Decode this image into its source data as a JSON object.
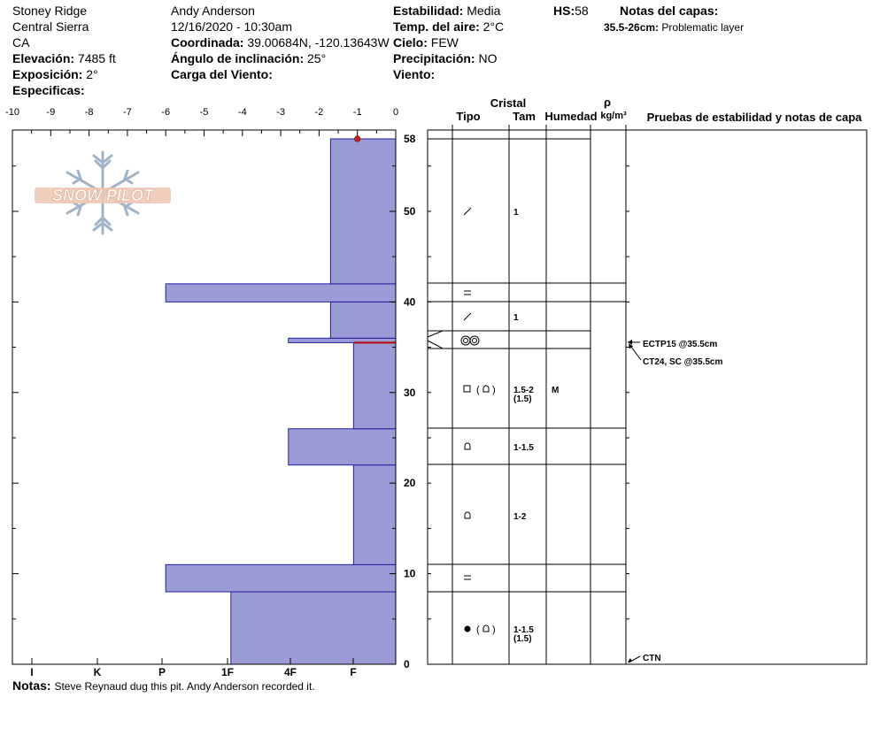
{
  "header": {
    "location": "Stoney Ridge",
    "region": "Central Sierra",
    "state": "CA",
    "elevation_label": "Elevación:",
    "elevation_value": "7485 ft",
    "aspect_label": "Exposición:",
    "aspect_value": "2°",
    "specifics_label": "Especificas:",
    "observer": "Andy Anderson",
    "datetime": "12/16/2020 - 10:30am",
    "coord_label": "Coordinada:",
    "coord_value": "39.00684N, -120.13643W",
    "slope_label": "Ángulo de inclinación:",
    "slope_value": "25°",
    "wind_load_label": "Carga del Viento:",
    "stability_label": "Estabilidad:",
    "stability_value": "Media",
    "air_temp_label": "Temp. del aire:",
    "air_temp_value": "2°C",
    "sky_label": "Cielo:",
    "sky_value": "FEW",
    "precip_label": "Precipitación:",
    "precip_value": "NO",
    "wind_label": "Viento:",
    "hs_label": "HS:",
    "hs_value": "58",
    "layer_notes_label": "Notas del capas:",
    "layer_note_range": "35.5-26cm:",
    "layer_note_text": "Problematic layer"
  },
  "logo_text": "SNOW PILOT",
  "colors": {
    "bar_fill": "#9b9bd6",
    "bar_stroke": "#2020a0",
    "weak_layer": "#c00000",
    "marker": "#cc2222"
  },
  "columns": {
    "crystal": "Cristal",
    "type": "Tipo",
    "size": "Tam",
    "moisture": "Humedad",
    "rho": "ρ",
    "density_unit": "kg/m³",
    "tests": "Pruebas de estabilidad y notas de capa"
  },
  "chart_data": {
    "type": "bar",
    "title": "",
    "x_axis_top": {
      "ticks": [
        -10,
        -9,
        -8,
        -7,
        -6,
        -5,
        -4,
        -3,
        -2,
        -1,
        0
      ],
      "label": ""
    },
    "hardness_scale": [
      "I",
      "K",
      "P",
      "1F",
      "4F",
      "F"
    ],
    "depth_ticks": [
      0,
      10,
      20,
      30,
      40,
      50,
      58
    ],
    "ylim": [
      0,
      58
    ],
    "hs": 58,
    "temperature_points": [
      {
        "depth": 58,
        "temp": -1
      }
    ],
    "weak_layer_depth": 35.5,
    "layers": [
      {
        "bottom": 0,
        "top": 8,
        "hardness": "1F",
        "hardness_value": 4.3,
        "grain": "melt-freeze + round",
        "size": "1-1.5",
        "size_sub": "(1.5)",
        "moisture": ""
      },
      {
        "bottom": 8,
        "top": 11,
        "hardness": "P",
        "hardness_value": 6.0,
        "grain": "surface hoar",
        "size": "",
        "size_sub": "",
        "moisture": ""
      },
      {
        "bottom": 11,
        "top": 22,
        "hardness": "F",
        "hardness_value": 1.1,
        "grain": "rounding faceted",
        "size": "1-2",
        "size_sub": "",
        "moisture": ""
      },
      {
        "bottom": 22,
        "top": 26,
        "hardness": "4F",
        "hardness_value": 2.8,
        "grain": "rounding faceted",
        "size": "1-1.5",
        "size_sub": "",
        "moisture": ""
      },
      {
        "bottom": 26,
        "top": 35.5,
        "hardness": "F",
        "hardness_value": 1.1,
        "grain": "faceted + rounding faceted",
        "size": "1.5-2",
        "size_sub": "(1.5)",
        "moisture": "M"
      },
      {
        "bottom": 35.5,
        "top": 36,
        "hardness": "4F",
        "hardness_value": 2.8,
        "grain": "melt-freeze clusters",
        "size": "",
        "size_sub": "",
        "moisture": ""
      },
      {
        "bottom": 36,
        "top": 40,
        "hardness": "4F-",
        "hardness_value": 1.7,
        "grain": "decomposing fragments",
        "size": "1",
        "size_sub": "",
        "moisture": ""
      },
      {
        "bottom": 40,
        "top": 42,
        "hardness": "P",
        "hardness_value": 6.0,
        "grain": "surface hoar",
        "size": "",
        "size_sub": "",
        "moisture": ""
      },
      {
        "bottom": 42,
        "top": 58,
        "hardness": "4F-",
        "hardness_value": 1.7,
        "grain": "decomposing fragments",
        "size": "1",
        "size_sub": "",
        "moisture": ""
      }
    ],
    "tests": [
      {
        "label": "ECTP15 @35.5cm",
        "depth": 35.5
      },
      {
        "label": "CT24, SC @35.5cm",
        "depth": 35.5
      },
      {
        "label": "CTN",
        "depth": 0
      }
    ]
  },
  "footer": {
    "notes_label": "Notas:",
    "notes_text": "Steve Reynaud dug this pit. Andy Anderson recorded it."
  }
}
